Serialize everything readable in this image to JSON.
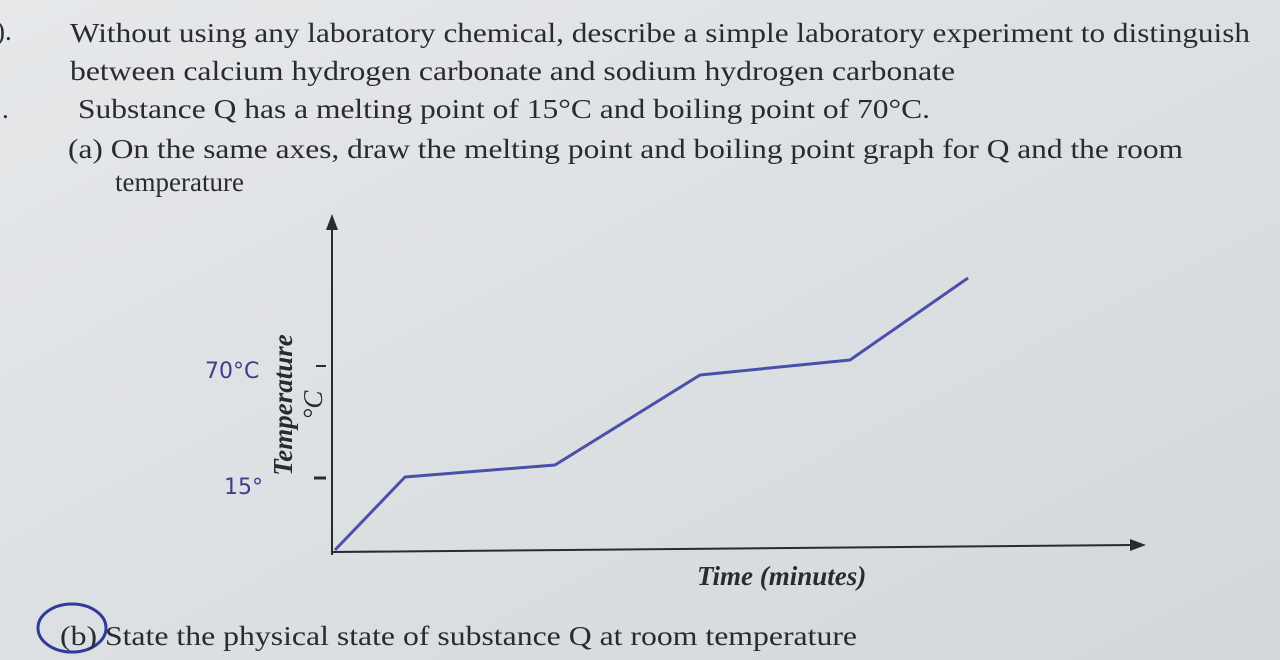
{
  "question_9": {
    "number": ").",
    "lines": [
      "Without using any laboratory chemical, describe a simple laboratory experiment to distinguish",
      "between calcium hydrogen carbonate and sodium hydrogen carbonate"
    ]
  },
  "question_10": {
    "number": ".",
    "stem": "Substance Q has a melting point of 15°C and boiling point of 70°C.",
    "part_a": {
      "lines": [
        "(a) On the same axes, draw the melting point and boiling point graph for Q and the room",
        "temperature"
      ],
      "graph": {
        "y_axis_label": "Temperature",
        "y_axis_unit": "°C",
        "x_axis_label": "Time (minutes)",
        "handwritten_labels": [
          "70°C",
          "15°"
        ]
      }
    },
    "part_b": "(b) State the physical state of substance Q at room temperature"
  }
}
